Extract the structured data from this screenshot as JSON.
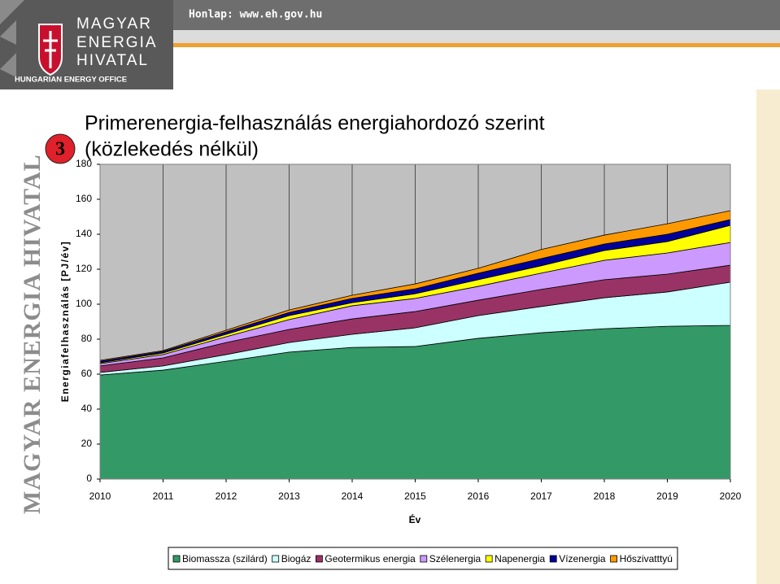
{
  "header": {
    "homepage": "Honlap: www.eh.gov.hu"
  },
  "logo": {
    "lines": [
      "MAGYAR",
      "ENERGIA",
      "HIVATAL"
    ],
    "subtitle": "HUNGARIAN ENERGY OFFICE"
  },
  "sidebar": {
    "text": "MAGYAR ENERGIA HIVATAL"
  },
  "slide_number": "3",
  "chart_data": {
    "type": "stacked_area",
    "title_lines": [
      "Primerenergia-felhasználás energiahordozó szerint",
      "(közlekedés nélkül)"
    ],
    "y_label": "Energiafelhasználás [PJ/év]",
    "x_label": "Év",
    "x": [
      2010,
      2011,
      2012,
      2013,
      2014,
      2015,
      2016,
      2017,
      2018,
      2019,
      2020
    ],
    "xlim": [
      2010,
      2020
    ],
    "xticks": [
      2010,
      2011,
      2012,
      2013,
      2014,
      2015,
      2016,
      2017,
      2018,
      2019,
      2020
    ],
    "ylim": [
      0,
      180
    ],
    "yticks": [
      0,
      20,
      40,
      60,
      80,
      100,
      120,
      140,
      160,
      180
    ],
    "grid": "x",
    "legend": "bottom",
    "series": [
      {
        "name": "Biomassza (szilárd)",
        "color": "#339966",
        "values": [
          59.5,
          62.3,
          67.4,
          72.6,
          75.3,
          75.8,
          80.5,
          83.7,
          86,
          87.4,
          87.9
        ]
      },
      {
        "name": "Biogáz",
        "color": "#ccffff",
        "values": [
          1.5,
          2.4,
          3.8,
          5.5,
          7.5,
          10.7,
          13,
          15,
          17.7,
          19.6,
          24.7
        ]
      },
      {
        "name": "Geotermikus energia",
        "color": "#993366",
        "values": [
          3.7,
          4.6,
          6.9,
          7.5,
          8.8,
          9.3,
          8.8,
          9.8,
          10.3,
          10.2,
          9.7
        ]
      },
      {
        "name": "Szélenergia",
        "color": "#cc99ff",
        "values": [
          1.3,
          1.9,
          3.3,
          5.6,
          7.5,
          7.5,
          7.9,
          9.3,
          11.1,
          12.1,
          13
        ]
      },
      {
        "name": "Napenergia",
        "color": "#ffff00",
        "values": [
          0.5,
          0.9,
          1.4,
          2.3,
          1.8,
          2.7,
          3.8,
          4.2,
          5.6,
          6.5,
          9.8
        ]
      },
      {
        "name": "Vízenergia",
        "color": "#000099",
        "values": [
          0.9,
          0.9,
          1.4,
          1.8,
          2.4,
          2.8,
          3.7,
          4.1,
          3.7,
          4.2,
          3.3
        ]
      },
      {
        "name": "Hőszivatttyú",
        "color": "#ff9900",
        "values": [
          0.5,
          0.5,
          0.9,
          1.4,
          1.8,
          2.8,
          2.8,
          5.2,
          5.1,
          6,
          5.1
        ]
      }
    ]
  }
}
